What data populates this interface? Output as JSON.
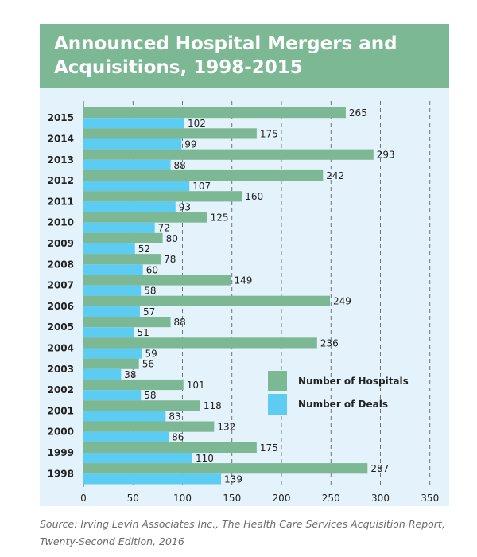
{
  "page": {
    "source_note": "Source: Irving Levin Associates Inc., The Health Care Services Acquisition Report, Twenty-Second Edition, 2016"
  },
  "chart_data": {
    "type": "bar",
    "orientation": "horizontal",
    "title": "Announced Hospital Mergers and Acquisitions, 1998-2015",
    "categories": [
      "2015",
      "2014",
      "2013",
      "2012",
      "2011",
      "2010",
      "2009",
      "2008",
      "2007",
      "2006",
      "2005",
      "2004",
      "2003",
      "2002",
      "2001",
      "2000",
      "1999",
      "1998"
    ],
    "series": [
      {
        "name": "Number of Hospitals",
        "color": "#7db894",
        "values": [
          265,
          175,
          293,
          242,
          160,
          125,
          80,
          78,
          149,
          249,
          88,
          236,
          56,
          101,
          118,
          132,
          175,
          287
        ]
      },
      {
        "name": "Number of Deals",
        "color": "#5dccf2",
        "values": [
          102,
          99,
          88,
          107,
          93,
          72,
          52,
          60,
          58,
          57,
          51,
          59,
          38,
          58,
          83,
          86,
          110,
          139
        ]
      }
    ],
    "xlim": [
      0,
      350
    ],
    "xticks": [
      "0",
      "50",
      "100",
      "150",
      "200",
      "250",
      "300",
      "350"
    ],
    "grid": "vertical dashed",
    "legend": "center-right",
    "header_color": "#7db894",
    "plot_background": "#e4f3fb"
  }
}
